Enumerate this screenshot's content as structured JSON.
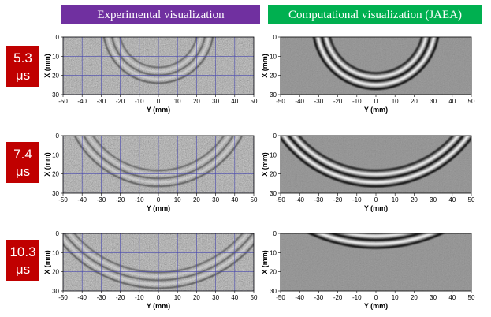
{
  "headers": {
    "experimental": "Experimental visualization",
    "computational": "Computational visualization (JAEA)"
  },
  "rows": [
    {
      "time": {
        "value": "5.3",
        "unit": "μs"
      }
    },
    {
      "time": {
        "value": "7.4",
        "unit": "μs"
      }
    },
    {
      "time": {
        "value": "10.3",
        "unit": "μs"
      }
    }
  ],
  "axes": {
    "horizontal_label": "Y (mm)",
    "vertical_label": "X (mm)",
    "horizontal_ticks": [
      -50,
      -40,
      -30,
      -20,
      -10,
      0,
      10,
      20,
      30,
      40,
      50
    ],
    "vertical_ticks": [
      0,
      10,
      20,
      30
    ]
  }
}
